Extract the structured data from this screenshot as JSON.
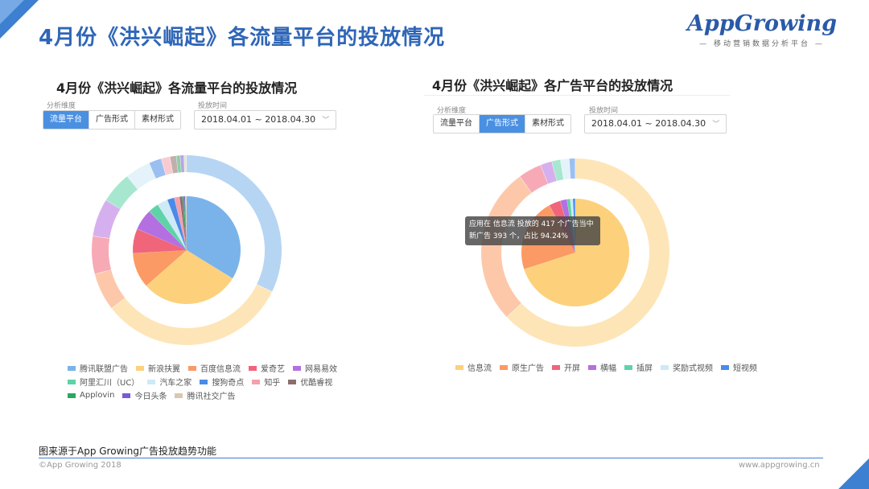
{
  "page": {
    "title": "4月份《洪兴崛起》各流量平台的投放情况",
    "caption": "图来源于App Growing广告投放趋势功能",
    "footer_left": "©App Growing 2018",
    "footer_right": "www.appgrowing.cn",
    "accent_color": "#3d7fd0"
  },
  "logo": {
    "main": "AppGrowing",
    "sub": "— 移动营销数据分析平台 —"
  },
  "left_panel": {
    "title": "4月份《洪兴崛起》各流量平台的投放情况",
    "dimension_label": "分析维度",
    "time_label": "投放时间",
    "tabs": [
      {
        "label": "流量平台",
        "active": true
      },
      {
        "label": "广告形式",
        "active": false
      },
      {
        "label": "素材形式",
        "active": false
      }
    ],
    "date_range": "2018.04.01 ~ 2018.04.30"
  },
  "right_panel": {
    "title": "4月份《洪兴崛起》各广告平台的投放情况",
    "dimension_label": "分析维度",
    "time_label": "投放时间",
    "tabs": [
      {
        "label": "流量平台",
        "active": false
      },
      {
        "label": "广告形式",
        "active": true
      },
      {
        "label": "素材形式",
        "active": false
      }
    ],
    "date_range": "2018.04.01 ~ 2018.04.30",
    "tooltip_line1": "应用在 信息流 投放的 417 个广告当中",
    "tooltip_line2": "新广告 393 个，占比 94.24%"
  },
  "chart_data": [
    {
      "type": "pie",
      "variant": "nested-donut",
      "title": "4月份《洪兴崛起》各流量平台的投放情况",
      "legend_position": "bottom",
      "categories": [
        "腾讯联盟广告",
        "新浪扶翼",
        "百度信息流",
        "爱奇艺",
        "网易易效",
        "阿里汇川（UC）",
        "汽车之家",
        "搜狗奇点",
        "知乎",
        "优酷睿视",
        "Applovin",
        "今日头条",
        "腾讯社交广告"
      ],
      "colors": [
        "#7ab3ea",
        "#fdd07b",
        "#fb9a64",
        "#f0657a",
        "#b46fe0",
        "#5fd3a8",
        "#cdeaf6",
        "#4a8ae8",
        "#f4a0ac",
        "#8c6e6a",
        "#28a860",
        "#7a5bd2",
        "#d9c8b0"
      ],
      "series": [
        {
          "ring": "inner",
          "values": [
            32,
            28,
            10,
            7,
            6,
            3,
            3,
            2,
            1.5,
            0.8,
            0.5,
            0.3,
            0.4
          ]
        },
        {
          "ring": "outer",
          "values": [
            30,
            30,
            6,
            6,
            6,
            5,
            4,
            2,
            1.4,
            1,
            0.6,
            0.6,
            0.4
          ]
        }
      ]
    },
    {
      "type": "pie",
      "variant": "nested-donut",
      "title": "4月份《洪兴崛起》各广告平台的投放情况",
      "legend_position": "bottom",
      "categories": [
        "信息流",
        "原生广告",
        "开屏",
        "横幅",
        "插屏",
        "奖励式视频",
        "短视频"
      ],
      "colors": [
        "#fdd07b",
        "#fb9a64",
        "#f0657a",
        "#b46fe0",
        "#5fd3a8",
        "#cdeaf6",
        "#4a8ae8"
      ],
      "series": [
        {
          "ring": "inner",
          "values": [
            70,
            22,
            3.5,
            2,
            1,
            0.8,
            0.7
          ]
        },
        {
          "ring": "outer",
          "values": [
            63,
            27,
            4,
            2,
            1.5,
            1.5,
            1
          ]
        }
      ]
    }
  ]
}
